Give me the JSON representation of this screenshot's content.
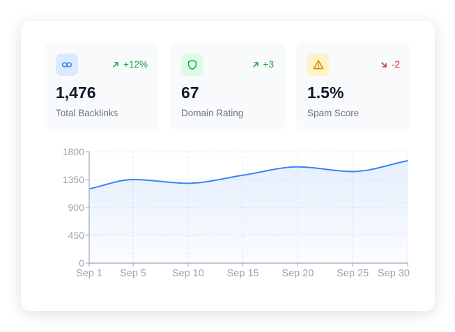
{
  "stats": [
    {
      "icon": "link-icon",
      "value": "1,476",
      "label": "Total Backlinks",
      "change": "+12%",
      "direction": "up",
      "icon_bg": "#dbeafe",
      "icon_color": "#3b82f6"
    },
    {
      "icon": "shield-icon",
      "value": "67",
      "label": "Domain Rating",
      "change": "+3",
      "direction": "up",
      "icon_bg": "#dcfce7",
      "icon_color": "#16a34a"
    },
    {
      "icon": "warning-icon",
      "value": "1.5%",
      "label": "Spam Score",
      "change": "-2",
      "direction": "down",
      "icon_bg": "#fef3c7",
      "icon_color": "#ca8a04"
    }
  ],
  "colors": {
    "up": "#16a34a",
    "down": "#dc2626",
    "line": "#3b82f6"
  },
  "chart_data": {
    "type": "area",
    "x": [
      1,
      5,
      10,
      15,
      20,
      25,
      30
    ],
    "tick_labels": [
      "Sep 1",
      "Sep 5",
      "Sep 10",
      "Sep 15",
      "Sep 20",
      "Sep 25",
      "Sep 30"
    ],
    "values": [
      1200,
      1350,
      1290,
      1420,
      1555,
      1480,
      1655
    ],
    "yticks": [
      0,
      450,
      900,
      1350,
      1800
    ],
    "ylim": [
      0,
      1800
    ],
    "xlim": [
      1,
      30
    ],
    "grid": true
  }
}
